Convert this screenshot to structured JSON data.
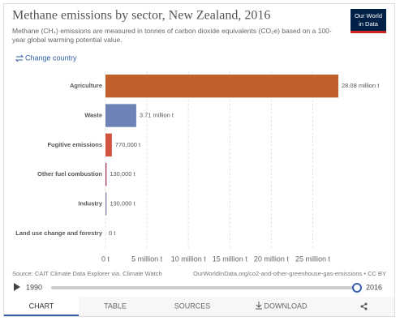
{
  "chart_data": {
    "type": "bar",
    "orientation": "horizontal",
    "title": "Methane emissions by sector, New Zealand, 2016",
    "subtitle": "Methane (CH₄) emissions are measured in tonnes of carbon dioxide equivalents (CO₂e) based on a 100-year global warming potential value.",
    "categories": [
      "Agriculture",
      "Waste",
      "Fugitive emissions",
      "Other fuel combustion",
      "Industry",
      "Land use change and forestry"
    ],
    "values": [
      28080000,
      3710000,
      770000,
      130000,
      130000,
      0
    ],
    "value_labels": [
      "28.08 million t",
      "3.71 million t",
      "770,000 t",
      "130,000 t",
      "130,000 t",
      "0 t"
    ],
    "colors": [
      "#c1602b",
      "#6d83b8",
      "#d3523e",
      "#a53d5c",
      "#8e7fa6",
      "#999999"
    ],
    "xlim": [
      0,
      28080000
    ],
    "xticks": [
      {
        "value": 0,
        "label": "0 t"
      },
      {
        "value": 5000000,
        "label": "5 million t"
      },
      {
        "value": 10000000,
        "label": "10 million t"
      },
      {
        "value": 15000000,
        "label": "15 million t"
      },
      {
        "value": 20000000,
        "label": "20 million t"
      },
      {
        "value": 25000000,
        "label": "25 million t"
      }
    ],
    "grid": true,
    "source": "Source: CAIT Climate Data Explorer via. Climate Watch",
    "url": "OurWorldInData.org/co2-and-other-greenhouse-gas-emissions • CC BY"
  },
  "ui": {
    "logo": [
      "Our World",
      "in Data"
    ],
    "change_country": "Change country",
    "timeline": {
      "start": "1990",
      "end": "2016"
    },
    "tabs": [
      "CHART",
      "TABLE",
      "SOURCES",
      "DOWNLOAD"
    ]
  }
}
